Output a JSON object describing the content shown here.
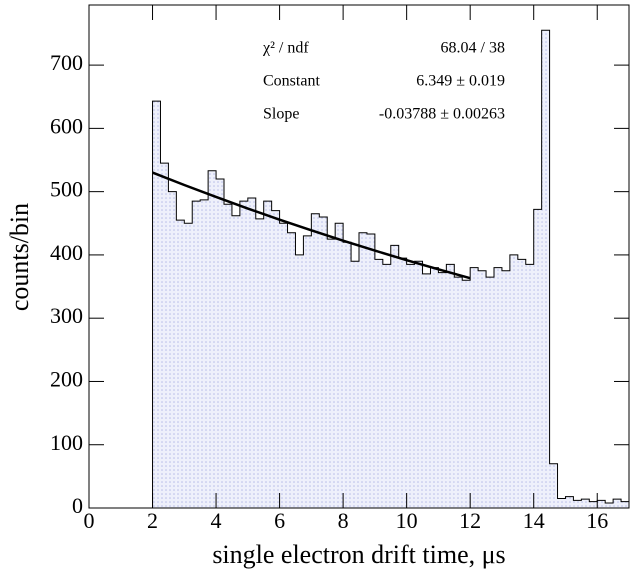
{
  "chart_data": {
    "type": "histogram",
    "xlabel": "single electron drift time, μs",
    "ylabel": "counts/bin",
    "bins": [
      2.0,
      2.25,
      2.5,
      2.75,
      3.0,
      3.25,
      3.5,
      3.75,
      4.0,
      4.25,
      4.5,
      4.75,
      5.0,
      5.25,
      5.5,
      5.75,
      6.0,
      6.25,
      6.5,
      6.75,
      7.0,
      7.25,
      7.5,
      7.75,
      8.0,
      8.25,
      8.5,
      8.75,
      9.0,
      9.25,
      9.5,
      9.75,
      10.0,
      10.25,
      10.5,
      10.75,
      11.0,
      11.25,
      11.5,
      11.75,
      12.0,
      12.25,
      12.5,
      12.75,
      13.0,
      13.25,
      13.5,
      13.75,
      14.0,
      14.25,
      14.5,
      14.75,
      15.0,
      15.25,
      15.5,
      15.75,
      16.0,
      16.25,
      16.5,
      16.75,
      17.0
    ],
    "values": [
      643,
      545,
      500,
      455,
      450,
      485,
      487,
      533,
      520,
      480,
      462,
      485,
      490,
      457,
      485,
      470,
      450,
      435,
      400,
      430,
      465,
      460,
      425,
      450,
      420,
      390,
      435,
      433,
      393,
      385,
      415,
      395,
      385,
      390,
      370,
      380,
      372,
      385,
      365,
      360,
      380,
      375,
      365,
      380,
      375,
      400,
      393,
      385,
      472,
      755,
      70,
      15,
      18,
      12,
      14,
      10,
      12,
      8,
      14,
      10
    ],
    "color": "#e6e6f7",
    "line_color": "#000000",
    "fit": {
      "x": [
        2,
        3,
        4,
        5,
        6,
        7,
        8,
        9,
        10,
        11,
        12
      ],
      "values": [
        530.2,
        510.5,
        491.6,
        473.3,
        455.7,
        438.8,
        422.5,
        406.8,
        391.7,
        377.2,
        363.2
      ],
      "color": "#000000"
    },
    "stats": [
      {
        "label": "χ² / ndf",
        "value": "68.04 / 38"
      },
      {
        "label": "Constant",
        "value": "6.349 ± 0.019"
      },
      {
        "label": "Slope",
        "value": "-0.03788 ± 0.00263"
      }
    ],
    "xlim": [
      0,
      17
    ],
    "xticks": [
      0,
      2,
      4,
      6,
      8,
      10,
      12,
      14,
      16
    ],
    "ylim": [
      0,
      795
    ],
    "yticks": [
      0,
      100,
      200,
      300,
      400,
      500,
      600,
      700
    ]
  }
}
